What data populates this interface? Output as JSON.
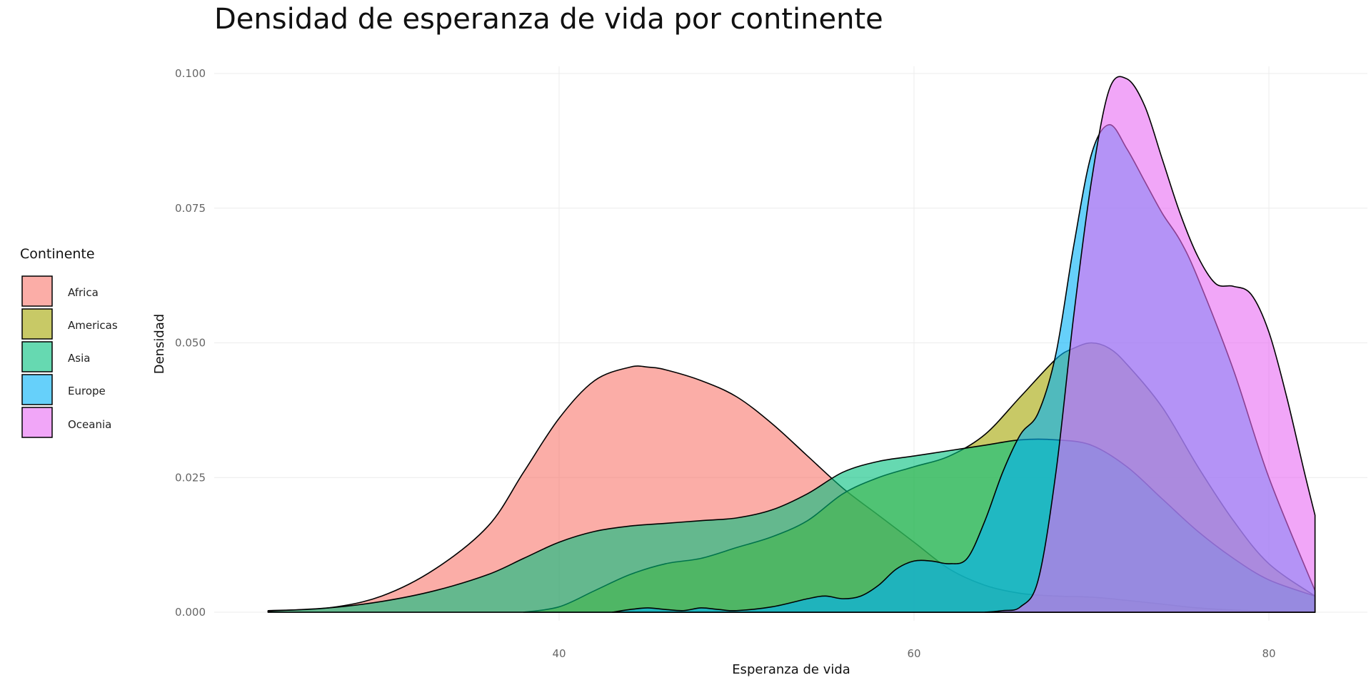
{
  "chart_data": {
    "type": "area",
    "title": "Densidad de esperanza de vida por continente",
    "xlabel": "Esperanza de vida",
    "ylabel": "Densidad",
    "xlim": [
      20,
      85
    ],
    "ylim": [
      0,
      0.1
    ],
    "x_ticks": [
      40,
      60,
      80
    ],
    "y_ticks": [
      0.0,
      0.025,
      0.05,
      0.075,
      0.1
    ],
    "y_tick_labels": [
      "0.000",
      "0.025",
      "0.050",
      "0.075",
      "0.100"
    ],
    "grid": true,
    "legend": {
      "title": "Continente",
      "position": "left"
    },
    "series": [
      {
        "name": "Africa",
        "color": "#F8766D",
        "x": [
          23.6,
          27,
          30,
          33,
          36,
          38,
          40,
          42,
          44,
          45,
          46,
          48,
          50,
          52,
          54,
          56,
          58,
          60,
          62,
          64,
          66,
          68,
          70,
          72,
          74,
          76,
          78,
          80,
          82.6
        ],
        "y": [
          0.0003,
          0.0008,
          0.003,
          0.008,
          0.016,
          0.026,
          0.036,
          0.043,
          0.0455,
          0.0455,
          0.045,
          0.043,
          0.04,
          0.035,
          0.029,
          0.023,
          0.018,
          0.013,
          0.008,
          0.005,
          0.0035,
          0.003,
          0.0028,
          0.0022,
          0.0015,
          0.0008,
          0.0004,
          0.0002,
          0.0001
        ]
      },
      {
        "name": "Americas",
        "color": "#A3A500",
        "x": [
          38,
          40,
          42,
          44,
          46,
          48,
          50,
          52,
          54,
          56,
          58,
          60,
          62,
          64,
          66,
          68,
          69,
          70,
          71,
          72,
          74,
          76,
          78,
          80,
          82.6
        ],
        "y": [
          0,
          0.001,
          0.004,
          0.007,
          0.009,
          0.01,
          0.012,
          0.014,
          0.017,
          0.022,
          0.025,
          0.027,
          0.029,
          0.033,
          0.04,
          0.047,
          0.049,
          0.05,
          0.049,
          0.046,
          0.038,
          0.027,
          0.017,
          0.009,
          0.003
        ]
      },
      {
        "name": "Asia",
        "color": "#00BF7D",
        "x": [
          23.6,
          27,
          30,
          33,
          36,
          38,
          40,
          42,
          44,
          46,
          48,
          50,
          52,
          54,
          56,
          58,
          60,
          62,
          64,
          66,
          68,
          70,
          72,
          74,
          76,
          78,
          80,
          82.6
        ],
        "y": [
          0.0002,
          0.0008,
          0.002,
          0.004,
          0.007,
          0.01,
          0.013,
          0.015,
          0.016,
          0.0165,
          0.017,
          0.0175,
          0.019,
          0.022,
          0.026,
          0.028,
          0.029,
          0.03,
          0.031,
          0.032,
          0.032,
          0.031,
          0.027,
          0.021,
          0.015,
          0.01,
          0.006,
          0.003
        ]
      },
      {
        "name": "Europe",
        "color": "#00B0F6",
        "x": [
          43,
          44,
          45,
          46,
          47,
          48,
          49,
          50,
          52,
          54,
          55,
          56,
          57,
          58,
          59,
          60,
          61,
          62,
          63,
          64,
          65,
          66,
          67,
          68,
          69,
          70,
          71,
          72,
          73,
          74,
          75,
          76,
          78,
          80,
          82.6
        ],
        "y": [
          0,
          0.0005,
          0.0008,
          0.0005,
          0.0003,
          0.0008,
          0.0005,
          0.0003,
          0.001,
          0.0025,
          0.003,
          0.0025,
          0.003,
          0.005,
          0.008,
          0.0095,
          0.0095,
          0.009,
          0.01,
          0.017,
          0.026,
          0.033,
          0.037,
          0.048,
          0.068,
          0.085,
          0.0905,
          0.086,
          0.08,
          0.074,
          0.069,
          0.062,
          0.045,
          0.025,
          0.004
        ]
      },
      {
        "name": "Oceania",
        "color": "#E76BF3",
        "x": [
          64,
          65,
          66,
          67,
          68,
          69,
          70,
          71,
          72,
          73,
          74,
          75,
          76,
          77,
          78,
          79,
          80,
          81,
          82,
          82.6
        ],
        "y": [
          0,
          0.0003,
          0.001,
          0.006,
          0.026,
          0.055,
          0.08,
          0.097,
          0.099,
          0.094,
          0.084,
          0.074,
          0.066,
          0.061,
          0.0605,
          0.059,
          0.052,
          0.04,
          0.026,
          0.018
        ]
      }
    ]
  },
  "legend_items": [
    {
      "label": "Africa"
    },
    {
      "label": "Americas"
    },
    {
      "label": "Asia"
    },
    {
      "label": "Europe"
    },
    {
      "label": "Oceania"
    }
  ]
}
